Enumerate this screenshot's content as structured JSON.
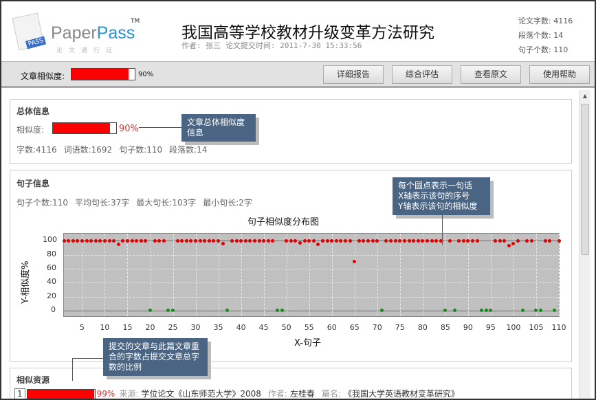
{
  "header": {
    "logo_brand_a": "Paper",
    "logo_brand_b": "Pass",
    "logo_tm": "TM",
    "logo_sub": "论文通行证",
    "logo_badge": "PASS",
    "title": "我国高等学校教材升级变革方法研究",
    "meta": "作者: 张三 论文提交时间: 2011-7-30 15:33:56",
    "stats": [
      "论文字数: 4116",
      "段落个数: 14",
      "句子个数: 110"
    ]
  },
  "toolbar": {
    "label": "文章相似度:",
    "similarity_pct": 90,
    "similarity_text": "90%",
    "buttons": [
      "详细报告",
      "综合评估",
      "查看原文",
      "使用帮助"
    ]
  },
  "overall": {
    "heading": "总体信息",
    "similarity_label": "相似度:",
    "similarity_text": "90%",
    "similarity_pct": 90,
    "counts": [
      "字数:4116",
      "词语数:1692",
      "句子数:110",
      "段落数:14"
    ],
    "tooltip": "文章总体相似度信息"
  },
  "sentences": {
    "heading": "句子信息",
    "counts": [
      "句子个数:110",
      "平均句长:37字",
      "最大句长:103字",
      "最小句长:2字"
    ],
    "tooltip": [
      "每个圆点表示一句话",
      "X轴表示该句的序号",
      "Y轴表示该句的相似度"
    ]
  },
  "chart_data": {
    "type": "scatter",
    "title": "句子相似度分布图",
    "xlabel": "X-句子",
    "ylabel": "Y-相似度%",
    "xlim": [
      1,
      110
    ],
    "ylim": [
      -10,
      110
    ],
    "grid": true,
    "xticks": [
      5,
      10,
      15,
      20,
      25,
      30,
      35,
      40,
      45,
      50,
      55,
      60,
      65,
      70,
      75,
      80,
      85,
      90,
      95,
      100,
      105,
      110
    ],
    "yticks": [
      0,
      20,
      40,
      60,
      80,
      100
    ],
    "zero_sentences": [
      20,
      24,
      25,
      37,
      48,
      49,
      71,
      85,
      87,
      93,
      94,
      95,
      102,
      105,
      106,
      109
    ],
    "partial_values": {
      "13": 95,
      "36": 96,
      "53": 97,
      "57": 95,
      "65": 70,
      "99": 93,
      "100": 96
    },
    "default_value": 100,
    "colors": {
      "similar": "#e00000",
      "zero": "#1a8a1a"
    }
  },
  "resources": {
    "heading": "相似资源",
    "tooltip": "提交的文章与此篇文章重合的字数占提交文章总字数的比例",
    "items": [
      {
        "index": "1",
        "pct": 99,
        "pct_text": "99%",
        "source_label": "来源:",
        "source": "学位论文《山东师范大学》2008",
        "author_label": "作者:",
        "author": "左桂春",
        "title_label": "篇名:",
        "title": "《我国大学英语教材变革研究》"
      }
    ]
  }
}
